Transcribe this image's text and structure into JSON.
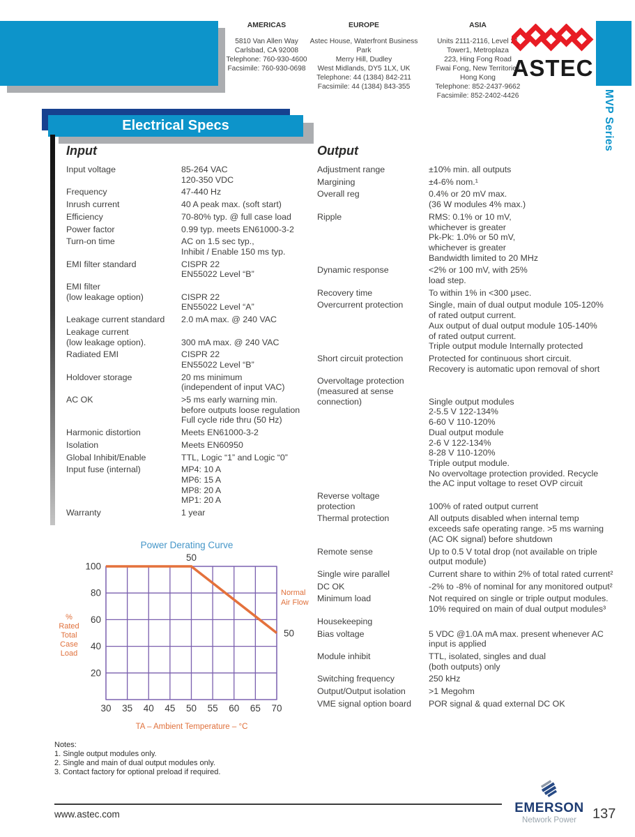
{
  "header": {
    "regions": [
      {
        "title": "AMERICAS",
        "lines": [
          "5810 Van Allen Way",
          "Carlsbad, CA 92008",
          "Telephone: 760-930-4600",
          "Facsimile: 760-930-0698"
        ]
      },
      {
        "title": "EUROPE",
        "lines": [
          "Astec House, Waterfront Business Park",
          "Merry Hill, Dudley",
          "West Midlands, DY5 1LX, UK",
          "Telephone: 44 (1384) 842-211",
          "Facsimile: 44 (1384) 843-355"
        ]
      },
      {
        "title": "ASIA",
        "lines": [
          "Units 2111-2116, Level 21",
          "Tower1, Metroplaza",
          "223, Hing Fong Road",
          "Fwai Fong, New Territories",
          "Hong Kong",
          "Telephone: 852-2437-9662",
          "Facsimile: 852-2402-4426"
        ]
      }
    ],
    "brand": "ASTEC",
    "series_label": "MVP Series"
  },
  "banner_title": "Electrical Specs",
  "input_section": {
    "title": "Input",
    "rows": [
      {
        "label": [
          "Input voltage"
        ],
        "value": [
          "85-264 VAC",
          "120-350 VDC"
        ]
      },
      {
        "label": [
          "Frequency"
        ],
        "value": [
          "47-440 Hz"
        ]
      },
      {
        "label": [
          "Inrush current"
        ],
        "value": [
          "40 A peak max. (soft start)"
        ]
      },
      {
        "label": [
          "Efficiency"
        ],
        "value": [
          "70-80% typ. @ full case load"
        ]
      },
      {
        "label": [
          "Power factor"
        ],
        "value": [
          "0.99 typ. meets EN61000-3-2"
        ]
      },
      {
        "label": [
          "Turn-on time"
        ],
        "value": [
          "AC on 1.5 sec typ.,",
          "Inhibit / Enable 150 ms typ."
        ]
      },
      {
        "label": [
          "EMI filter standard"
        ],
        "value": [
          "CISPR 22",
          "EN55022 Level “B”"
        ]
      },
      {
        "label": [
          "EMI filter",
          "(low  leakage option)"
        ],
        "value": [
          "",
          "CISPR 22",
          "EN55022 Level “A”"
        ]
      },
      {
        "label": [
          "Leakage current standard"
        ],
        "value": [
          "2.0 mA max. @ 240 VAC"
        ]
      },
      {
        "label": [
          "Leakage current",
          "(low leakage option)."
        ],
        "value": [
          "",
          "300 mA max. @ 240 VAC"
        ]
      },
      {
        "label": [
          "Radiated EMI"
        ],
        "value": [
          "CISPR 22",
          "EN55022 Level “B”"
        ]
      },
      {
        "label": [
          "Holdover storage"
        ],
        "value": [
          "20 ms minimum",
          "(independent of input VAC)"
        ]
      },
      {
        "label": [
          "AC OK"
        ],
        "value": [
          ">5 ms early warning min.",
          "before outputs loose regulation",
          "Full cycle ride thru (50 Hz)"
        ]
      },
      {
        "label": [
          "Harmonic distortion"
        ],
        "value": [
          "Meets EN61000-3-2"
        ]
      },
      {
        "label": [
          "Isolation"
        ],
        "value": [
          "Meets EN60950"
        ]
      },
      {
        "label": [
          "Global Inhibit/Enable"
        ],
        "value": [
          "TTL, Logic “1” and Logic “0”"
        ]
      },
      {
        "label": [
          "Input fuse (internal)"
        ],
        "value": [
          "MP4: 10 A",
          "MP6: 15 A",
          "MP8: 20 A",
          "MP1: 20 A"
        ]
      },
      {
        "label": [
          "Warranty"
        ],
        "value": [
          "1 year"
        ]
      }
    ]
  },
  "output_section": {
    "title": "Output",
    "rows": [
      {
        "label": [
          "Adjustment range"
        ],
        "value": [
          "±10% min. all outputs"
        ]
      },
      {
        "label": [
          "Margining"
        ],
        "value": [
          "±4-6% nom.¹"
        ]
      },
      {
        "label": [
          "Overall reg"
        ],
        "value": [
          "0.4% or 20 mV max.",
          "(36 W modules 4% max.)"
        ]
      },
      {
        "label": [
          "Ripple"
        ],
        "value": [
          "RMS: 0.1% or 10 mV,",
          "whichever is greater",
          "Pk-Pk: 1.0% or 50 mV,",
          "whichever is greater",
          "Bandwidth limited to 20 MHz"
        ]
      },
      {
        "label": [
          "Dynamic response"
        ],
        "value": [
          "<2% or 100 mV, with 25%",
          "load step."
        ]
      },
      {
        "label": [
          "Recovery time"
        ],
        "value": [
          "To within 1% in <300 μsec."
        ]
      },
      {
        "label": [
          "Overcurrent protection"
        ],
        "value": [
          "Single, main of dual output module 105-120%",
          "of rated output current.",
          "Aux output of dual output module 105-140%",
          "of rated output current.",
          "Triple output module Internally protected"
        ]
      },
      {
        "label": [
          "Short circuit protection"
        ],
        "value": [
          "Protected for continuous short circuit.",
          "Recovery is automatic upon removal of short"
        ]
      },
      {
        "label": [
          "Overvoltage protection",
          "(measured at sense",
          "connection)"
        ],
        "value": [
          "",
          "",
          "Single output modules",
          "2-5.5 V  122-134%",
          "6-60 V  110-120%",
          "Dual output module",
          "2-6 V  122-134%",
          "8-28 V  110-120%",
          "Triple output module.",
          "No overvoltage protection provided. Recycle",
          "the AC input voltage to reset OVP circuit"
        ]
      },
      {
        "label": [
          "Reverse voltage",
          "protection"
        ],
        "value": [
          "",
          "100% of rated output current"
        ]
      },
      {
        "label": [
          "Thermal protection"
        ],
        "value": [
          "All outputs disabled when internal temp",
          "exceeds safe operating range. >5 ms warning",
          "(AC OK signal) before shutdown"
        ]
      },
      {
        "label": [
          "Remote sense"
        ],
        "value": [
          "Up to 0.5 V total drop (not available on triple",
          "output module)"
        ]
      },
      {
        "label": [
          "Single wire parallel"
        ],
        "value": [
          "Current share to within 2% of total rated current²"
        ]
      },
      {
        "label": [
          "DC OK"
        ],
        "value": [
          "-2% to -8% of nominal for any monitored output²"
        ]
      },
      {
        "label": [
          "Minimum load"
        ],
        "value": [
          "Not required on single or triple output modules.",
          "10% required on main of dual output modules³"
        ]
      },
      {
        "label": [
          "Housekeeping"
        ],
        "value": [
          ""
        ]
      },
      {
        "label": [
          "Bias voltage"
        ],
        "value": [
          "5 VDC @1.0A mA max. present whenever AC",
          "input is applied"
        ]
      },
      {
        "label": [
          "Module inhibit"
        ],
        "value": [
          "TTL, isolated, singles and dual",
          "(both outputs) only"
        ]
      },
      {
        "label": [
          "Switching frequency"
        ],
        "value": [
          "250 kHz"
        ]
      },
      {
        "label": [
          "Output/Output isolation"
        ],
        "value": [
          ">1 Megohm"
        ]
      },
      {
        "label": [
          "VME signal option board"
        ],
        "value": [
          "POR signal & quad external DC OK"
        ]
      }
    ]
  },
  "chart_data": {
    "type": "line",
    "title": "Power Derating Curve",
    "xlabel": "TA – Ambient Temperature – °C",
    "ylabel": "% Rated Total Case Load",
    "ylabel_lines": [
      "%",
      "Rated",
      "Total",
      "Case",
      "Load"
    ],
    "x_ticks": [
      30,
      35,
      40,
      45,
      50,
      55,
      60,
      65,
      70
    ],
    "y_ticks": [
      100,
      80,
      60,
      40,
      20
    ],
    "xlim": [
      30,
      70
    ],
    "ylim": [
      0,
      100
    ],
    "grid": true,
    "series": [
      {
        "name": "Normal Air Flow",
        "points": [
          [
            30,
            100
          ],
          [
            50,
            100
          ],
          [
            70,
            50
          ]
        ]
      }
    ],
    "annotations": [
      {
        "text": "50",
        "x": 50,
        "y": 100,
        "position": "above"
      },
      {
        "text": "50",
        "x": 70,
        "y": 50,
        "position": "right"
      }
    ],
    "side_label_lines": [
      "Normal",
      "Air Flow"
    ],
    "colors": {
      "line": "#e4713c",
      "grid": "#7a5fae",
      "title": "#4596c8",
      "axis_text": "#3a3a3a",
      "label": "#e0713c"
    }
  },
  "notes": {
    "title": "Notes:",
    "items": [
      "1. Single output modules only.",
      "2. Single and main of dual output modules only.",
      "3. Contact factory for optional preload if required."
    ]
  },
  "footer": {
    "website": "www.astec.com",
    "brand": "EMERSON",
    "brand_sub": "Network Power",
    "page_number": "137"
  },
  "colors": {
    "accent_cyan": "#0d94ca",
    "accent_navy": "#16418f",
    "shadow_gray": "#abadb0",
    "astec_red": "#e81c24",
    "emerson_blue": "#1e3c72"
  }
}
